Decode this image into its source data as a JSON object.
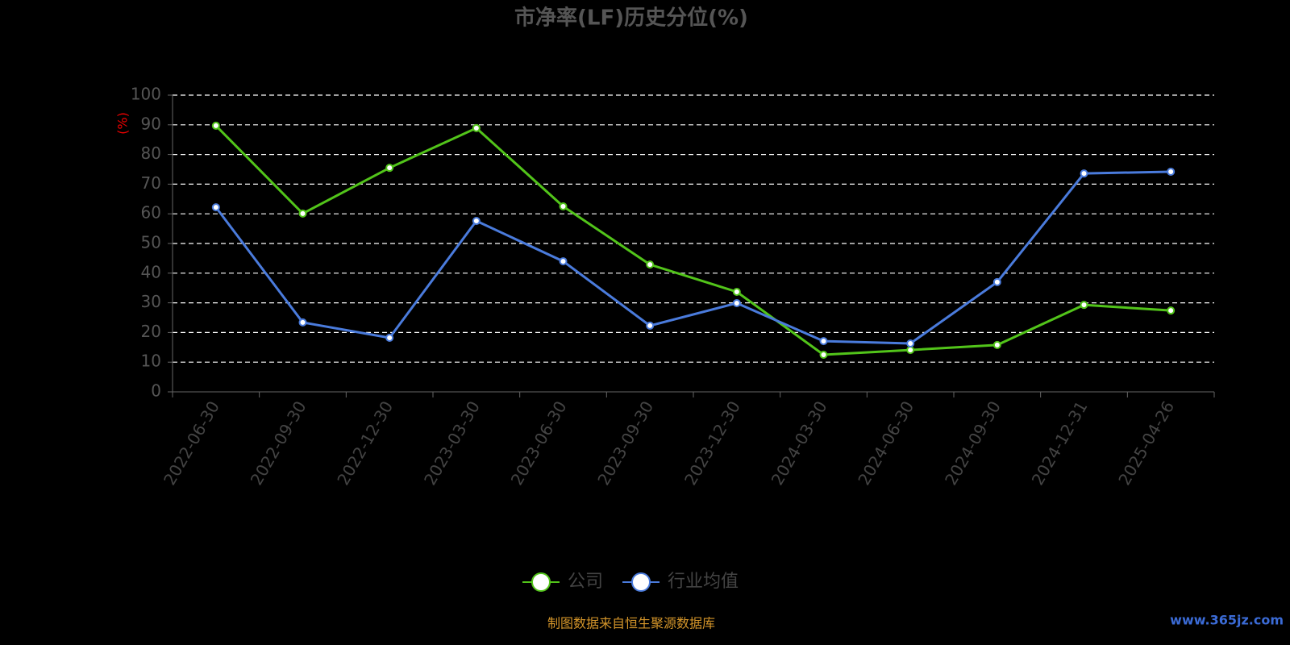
{
  "chart_data": {
    "type": "line",
    "title": "市净率(LF)历史分位(%)",
    "y_label": "(%)",
    "categories": [
      "2022-06-30",
      "2022-09-30",
      "2022-12-30",
      "2023-03-30",
      "2023-06-30",
      "2023-09-30",
      "2023-12-30",
      "2024-03-30",
      "2024-06-30",
      "2024-09-30",
      "2024-12-31",
      "2025-04-26"
    ],
    "series": [
      {
        "name": "公司",
        "color": "#52c41a",
        "values": [
          89.7,
          60.1,
          75.5,
          88.9,
          62.5,
          42.9,
          33.7,
          12.5,
          14.1,
          15.8,
          29.3,
          27.4
        ]
      },
      {
        "name": "行业均值",
        "color": "#4a7bdc",
        "values": [
          62.2,
          23.4,
          18.2,
          57.6,
          44.0,
          22.3,
          29.9,
          17.1,
          16.3,
          37.0,
          73.6,
          74.2
        ]
      }
    ],
    "ylim": [
      0,
      100
    ],
    "yticks": [
      0,
      10,
      20,
      30,
      40,
      50,
      60,
      70,
      80,
      90,
      100
    ],
    "grid": true,
    "source": "制图数据来自恒生聚源数据库",
    "watermark": "www.365jz.com"
  }
}
